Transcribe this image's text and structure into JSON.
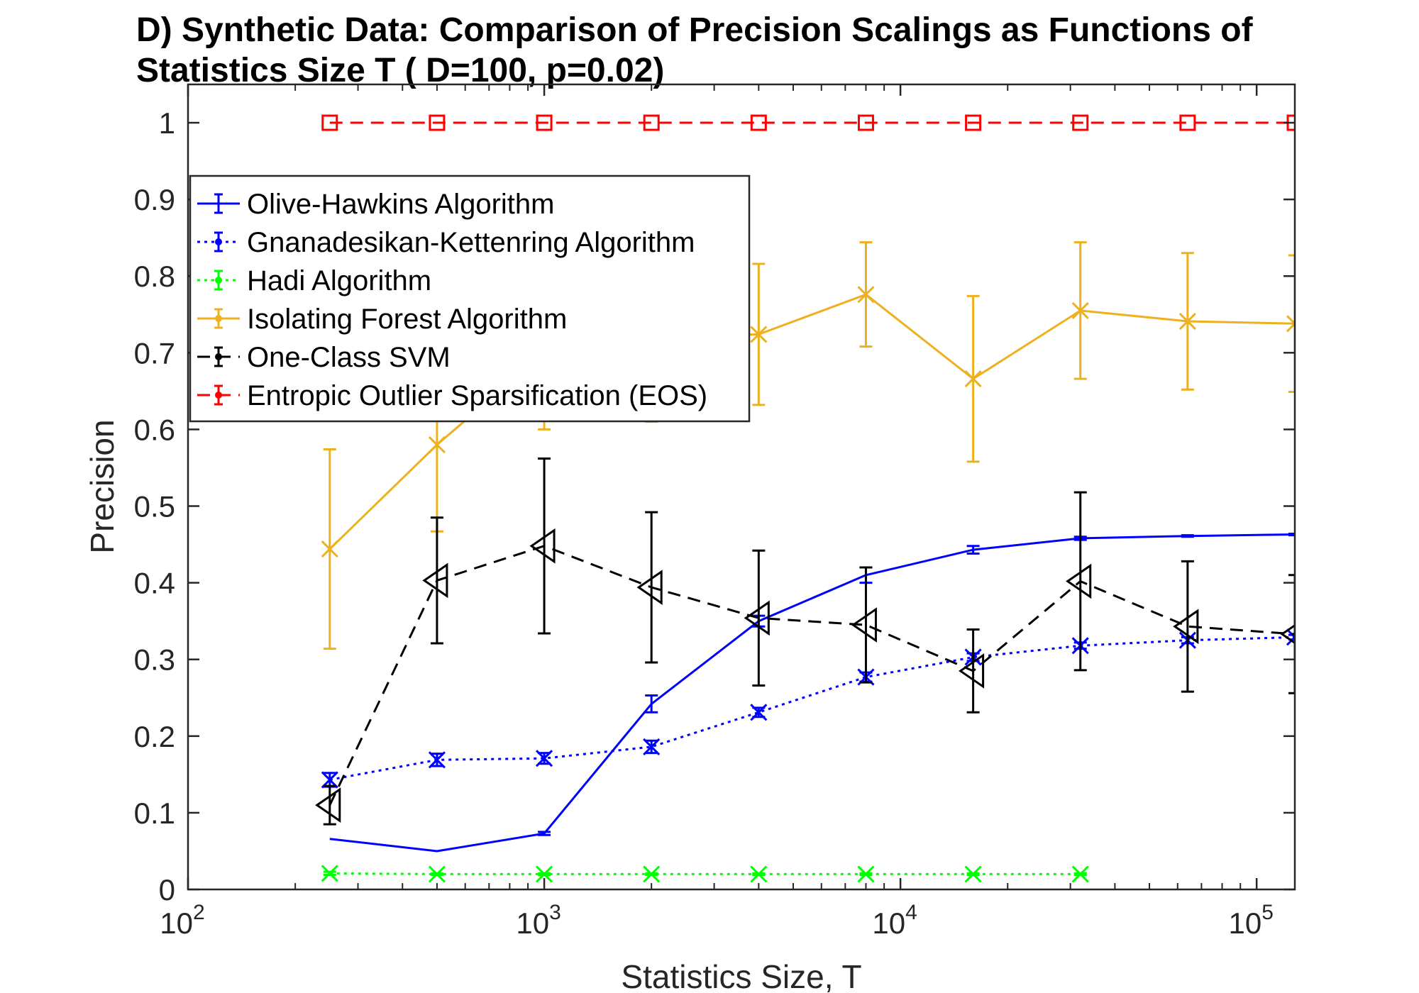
{
  "chart_data": {
    "type": "line",
    "title": "D) Synthetic Data: Comparison of Precision Scalings as Functions of Statistics Size T ( D=100, p=0.02)",
    "xlabel": "Statistics Size, T",
    "ylabel": "Precision",
    "xscale": "log",
    "xlim": [
      100,
      128000
    ],
    "ylim": [
      0,
      1.05
    ],
    "x_ticks": [
      100,
      1000,
      10000,
      100000
    ],
    "x_tick_labels": [
      {
        "base": "10",
        "exp": "2"
      },
      {
        "base": "10",
        "exp": "3"
      },
      {
        "base": "10",
        "exp": "4"
      },
      {
        "base": "10",
        "exp": "5"
      }
    ],
    "y_ticks": [
      0,
      0.1,
      0.2,
      0.3,
      0.4,
      0.5,
      0.6,
      0.7,
      0.8,
      0.9,
      1
    ],
    "y_tick_labels": [
      "0",
      "0.1",
      "0.2",
      "0.3",
      "0.4",
      "0.5",
      "0.6",
      "0.7",
      "0.8",
      "0.9",
      "1"
    ],
    "grid": false,
    "legend_position": "top-left",
    "series": [
      {
        "name": "Olive-Hawkins Algorithm",
        "color": "#0000ff",
        "dash": "solid",
        "marker": "none",
        "x": [
          250,
          500,
          1000,
          2000,
          4000,
          8000,
          16000,
          32000,
          64000,
          128000
        ],
        "y": [
          0.066,
          0.05,
          0.073,
          0.242,
          0.35,
          0.41,
          0.443,
          0.458,
          0.461,
          0.463
        ],
        "err": [
          0,
          0,
          0.002,
          0.011,
          0.007,
          0.01,
          0.005,
          0.002,
          0.001,
          0.001
        ]
      },
      {
        "name": "Gnanadesikan-Kettenring Algorithm",
        "color": "#0000ff",
        "dash": "dotted",
        "marker": "x",
        "x": [
          250,
          500,
          1000,
          2000,
          4000,
          8000,
          16000,
          32000,
          64000,
          128000
        ],
        "y": [
          0.143,
          0.169,
          0.171,
          0.186,
          0.231,
          0.277,
          0.303,
          0.318,
          0.325,
          0.329
        ],
        "err": [
          0.009,
          0.008,
          0.007,
          0.008,
          0.006,
          0.006,
          0.005,
          0.004,
          0.004,
          0.003
        ]
      },
      {
        "name": "Hadi Algorithm",
        "color": "#00ff00",
        "dash": "dotted",
        "marker": "x",
        "x": [
          250,
          500,
          1000,
          2000,
          4000,
          8000,
          16000,
          32000
        ],
        "y": [
          0.021,
          0.02,
          0.02,
          0.02,
          0.02,
          0.02,
          0.02,
          0.02
        ],
        "err": [
          0.002,
          0.001,
          0.001,
          0.001,
          0.001,
          0.001,
          0.001,
          0.001
        ]
      },
      {
        "name": "Isolating Forest Algorithm",
        "color": "#edb120",
        "dash": "solid",
        "marker": "x",
        "x": [
          250,
          500,
          1000,
          2000,
          4000,
          8000,
          16000,
          32000,
          64000,
          128000
        ],
        "y": [
          0.444,
          0.58,
          0.7,
          0.72,
          0.724,
          0.776,
          0.666,
          0.755,
          0.741,
          0.738
        ],
        "err": [
          0.13,
          0.113,
          0.1,
          0.11,
          0.092,
          0.068,
          0.108,
          0.089,
          0.089,
          0.089
        ]
      },
      {
        "name": "One-Class SVM",
        "color": "#000000",
        "dash": "dashed",
        "marker": "triangle-left",
        "x": [
          250,
          500,
          1000,
          2000,
          4000,
          8000,
          16000,
          32000,
          64000,
          128000
        ],
        "y": [
          0.11,
          0.403,
          0.448,
          0.394,
          0.354,
          0.345,
          0.285,
          0.402,
          0.343,
          0.333
        ],
        "err": [
          0.025,
          0.082,
          0.114,
          0.098,
          0.088,
          0.075,
          0.054,
          0.116,
          0.085,
          0.077
        ]
      },
      {
        "name": "Entropic Outlier Sparsification (EOS)",
        "color": "#ff0000",
        "dash": "dashed",
        "marker": "square",
        "x": [
          250,
          500,
          1000,
          2000,
          4000,
          8000,
          16000,
          32000,
          64000,
          128000
        ],
        "y": [
          1,
          1,
          1,
          1,
          1,
          1,
          1,
          1,
          1,
          1
        ],
        "err": [
          0,
          0,
          0,
          0,
          0,
          0,
          0,
          0,
          0,
          0
        ]
      }
    ]
  }
}
